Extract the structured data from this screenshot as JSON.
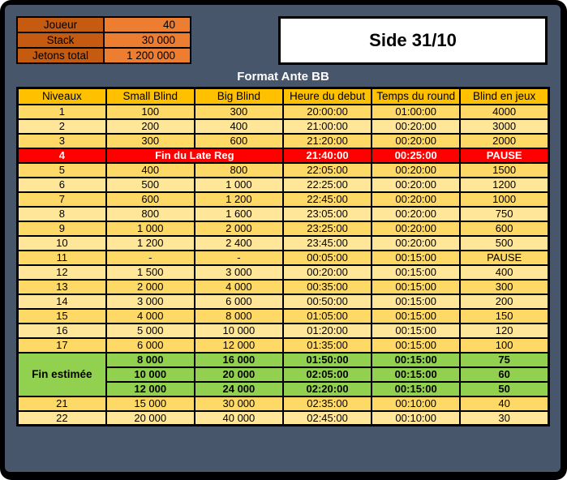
{
  "info": {
    "rows": [
      {
        "label": "Joueur",
        "value": "40"
      },
      {
        "label": "Stack",
        "value": "30 000"
      },
      {
        "label": "Jetons total",
        "value": "1 200 000"
      }
    ]
  },
  "title": "Side 31/10",
  "subtitle": "Format Ante BB",
  "table": {
    "headers": [
      "Niveaux",
      "Small Blind",
      "Big Blind",
      "Heure du debut",
      "Temps du round",
      "Blind en jeux"
    ],
    "rows": [
      {
        "style": "dark",
        "cells": [
          "1",
          "100",
          "300",
          "20:00:00",
          "01:00:00",
          "4000"
        ]
      },
      {
        "style": "light",
        "cells": [
          "2",
          "200",
          "400",
          "21:00:00",
          "00:20:00",
          "3000"
        ]
      },
      {
        "style": "dark",
        "cells": [
          "3",
          "300",
          "600",
          "21:20:00",
          "00:20:00",
          "2000"
        ]
      },
      {
        "style": "red",
        "cells": [
          "4",
          "Fin du Late Reg",
          "21:40:00",
          "00:25:00",
          "PAUSE"
        ]
      },
      {
        "style": "dark",
        "cells": [
          "5",
          "400",
          "800",
          "22:05:00",
          "00:20:00",
          "1500"
        ]
      },
      {
        "style": "light",
        "cells": [
          "6",
          "500",
          "1 000",
          "22:25:00",
          "00:20:00",
          "1200"
        ]
      },
      {
        "style": "dark",
        "cells": [
          "7",
          "600",
          "1 200",
          "22:45:00",
          "00:20:00",
          "1000"
        ]
      },
      {
        "style": "light",
        "cells": [
          "8",
          "800",
          "1 600",
          "23:05:00",
          "00:20:00",
          "750"
        ]
      },
      {
        "style": "dark",
        "cells": [
          "9",
          "1 000",
          "2 000",
          "23:25:00",
          "00:20:00",
          "600"
        ]
      },
      {
        "style": "light",
        "cells": [
          "10",
          "1 200",
          "2 400",
          "23:45:00",
          "00:20:00",
          "500"
        ]
      },
      {
        "style": "dark",
        "cells": [
          "11",
          "-",
          "-",
          "00:05:00",
          "00:15:00",
          "PAUSE"
        ]
      },
      {
        "style": "light",
        "cells": [
          "12",
          "1 500",
          "3 000",
          "00:20:00",
          "00:15:00",
          "400"
        ]
      },
      {
        "style": "dark",
        "cells": [
          "13",
          "2 000",
          "4 000",
          "00:35:00",
          "00:15:00",
          "300"
        ]
      },
      {
        "style": "light",
        "cells": [
          "14",
          "3 000",
          "6 000",
          "00:50:00",
          "00:15:00",
          "200"
        ]
      },
      {
        "style": "dark",
        "cells": [
          "15",
          "4 000",
          "8 000",
          "01:05:00",
          "00:15:00",
          "150"
        ]
      },
      {
        "style": "light",
        "cells": [
          "16",
          "5 000",
          "10 000",
          "01:20:00",
          "00:15:00",
          "120"
        ]
      },
      {
        "style": "dark",
        "cells": [
          "17",
          "6 000",
          "12 000",
          "01:35:00",
          "00:15:00",
          "100"
        ]
      },
      {
        "style": "green",
        "spanLabel": "Fin estimée",
        "spanRows": 3,
        "cells": [
          "8 000",
          "16 000",
          "01:50:00",
          "00:15:00",
          "75"
        ]
      },
      {
        "style": "green",
        "cells": [
          "10 000",
          "20 000",
          "02:05:00",
          "00:15:00",
          "60"
        ]
      },
      {
        "style": "green",
        "cells": [
          "12 000",
          "24 000",
          "02:20:00",
          "00:15:00",
          "50"
        ]
      },
      {
        "style": "dark",
        "cells": [
          "21",
          "15 000",
          "30 000",
          "02:35:00",
          "00:10:00",
          "40"
        ]
      },
      {
        "style": "light",
        "cells": [
          "22",
          "20 000",
          "40 000",
          "02:45:00",
          "00:10:00",
          "30"
        ]
      }
    ]
  },
  "colors": {
    "background": "#47566A",
    "frame": "#000000",
    "header_row": "#FFC000",
    "row_dark": "#FFD966",
    "row_light": "#FFE699",
    "late_reg_row": "#FF0000",
    "estimated_end_rows": "#92D050",
    "info_label": "#C55A11",
    "info_value": "#ED7D31",
    "title_box": "#FFFFFF"
  }
}
